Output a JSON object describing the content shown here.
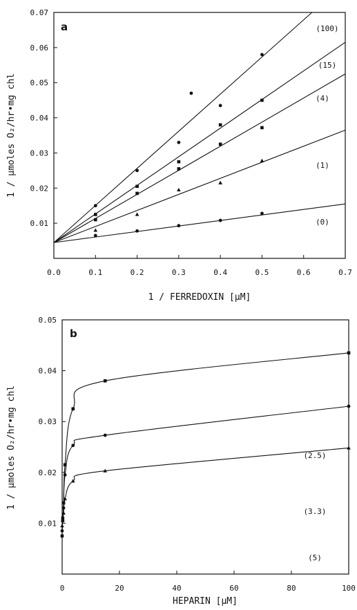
{
  "chart_data": [
    {
      "type": "scatter",
      "panel_label": "a",
      "xlabel": "1 / FERREDOXIN [µM]",
      "ylabel": "1 / µmoles O₂/hr•mg chl",
      "xlim": [
        0,
        0.7
      ],
      "ylim": [
        0,
        0.07
      ],
      "x_ticks": [
        "0.0",
        "0.1",
        "0.2",
        "0.3",
        "0.4",
        "0.5",
        "0.6",
        "0.7"
      ],
      "y_ticks": [
        "0.01",
        "0.02",
        "0.03",
        "0.04",
        "0.05",
        "0.06",
        "0.07"
      ],
      "x_tick_values": [
        0,
        0.1,
        0.2,
        0.3,
        0.4,
        0.5,
        0.6,
        0.7
      ],
      "y_tick_values": [
        0.01,
        0.02,
        0.03,
        0.04,
        0.05,
        0.06,
        0.07
      ],
      "series": [
        {
          "name": "(100)",
          "marker": "circle",
          "line": [
            [
              0,
              0.0045
            ],
            [
              0.62,
              0.07
            ]
          ],
          "points": [
            [
              0.1,
              0.015
            ],
            [
              0.2,
              0.025
            ],
            [
              0.3,
              0.033
            ],
            [
              0.33,
              0.047
            ],
            [
              0.4,
              0.0435
            ],
            [
              0.5,
              0.058
            ]
          ]
        },
        {
          "name": "(15)",
          "marker": "square",
          "line": [
            [
              0,
              0.0045
            ],
            [
              0.7,
              0.0615
            ]
          ],
          "points": [
            [
              0.1,
              0.0125
            ],
            [
              0.2,
              0.0205
            ],
            [
              0.3,
              0.0275
            ],
            [
              0.4,
              0.038
            ],
            [
              0.5,
              0.045
            ]
          ]
        },
        {
          "name": "(4)",
          "marker": "square",
          "line": [
            [
              0,
              0.0045
            ],
            [
              0.7,
              0.0525
            ]
          ],
          "points": [
            [
              0.1,
              0.011
            ],
            [
              0.2,
              0.0185
            ],
            [
              0.3,
              0.0255
            ],
            [
              0.4,
              0.0325
            ],
            [
              0.5,
              0.0372
            ]
          ]
        },
        {
          "name": "(1)",
          "marker": "triangle",
          "line": [
            [
              0,
              0.0045
            ],
            [
              0.7,
              0.0365
            ]
          ],
          "points": [
            [
              0.1,
              0.008
            ],
            [
              0.2,
              0.0125
            ],
            [
              0.3,
              0.0195
            ],
            [
              0.4,
              0.0215
            ],
            [
              0.5,
              0.0278
            ]
          ]
        },
        {
          "name": "(0)",
          "marker": "circle",
          "line": [
            [
              0,
              0.0045
            ],
            [
              0.7,
              0.0155
            ]
          ],
          "points": [
            [
              0.1,
              0.0065
            ],
            [
              0.2,
              0.0078
            ],
            [
              0.3,
              0.0093
            ],
            [
              0.4,
              0.0108
            ],
            [
              0.5,
              0.0128
            ]
          ]
        }
      ]
    },
    {
      "type": "line",
      "panel_label": "b",
      "xlabel": "HEPARIN [µM]",
      "ylabel": "1 / µmoles O₂/hr•mg chl",
      "xlim": [
        0,
        100
      ],
      "ylim": [
        0,
        0.05
      ],
      "x_ticks": [
        "0",
        "20",
        "40",
        "60",
        "80",
        "100"
      ],
      "y_ticks": [
        "0.01",
        "0.02",
        "0.03",
        "0.04",
        "0.05"
      ],
      "x_tick_values": [
        0,
        20,
        40,
        60,
        80,
        100
      ],
      "y_tick_values": [
        0.01,
        0.02,
        0.03,
        0.04,
        0.05
      ],
      "series": [
        {
          "name": "(2.5)",
          "marker": "square",
          "points": [
            [
              0,
              0.0075
            ],
            [
              0.2,
              0.011
            ],
            [
              0.5,
              0.014
            ],
            [
              1,
              0.0215
            ],
            [
              3.8,
              0.0325
            ],
            [
              15,
              0.038
            ],
            [
              100,
              0.0435
            ]
          ]
        },
        {
          "name": "(3.3)",
          "marker": "circle",
          "points": [
            [
              0,
              0.0085
            ],
            [
              0.2,
              0.0105
            ],
            [
              0.5,
              0.013
            ],
            [
              1,
              0.0195
            ],
            [
              3.8,
              0.0253
            ],
            [
              15,
              0.0273
            ],
            [
              100,
              0.033
            ]
          ]
        },
        {
          "name": "(5)",
          "marker": "triangle",
          "points": [
            [
              0,
              0.0095
            ],
            [
              0.2,
              0.0105
            ],
            [
              0.5,
              0.012
            ],
            [
              1,
              0.0148
            ],
            [
              3.8,
              0.0183
            ],
            [
              15,
              0.0203
            ],
            [
              100,
              0.0248
            ]
          ]
        }
      ]
    }
  ]
}
